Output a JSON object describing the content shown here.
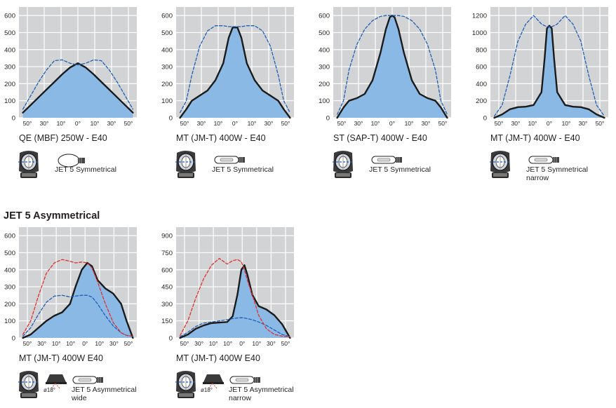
{
  "section_title": "JET 5 Asymmetrical",
  "colors": {
    "fill": "#8bb9e6",
    "grid_bg": "#d2d3d5",
    "solid": "#1b1b1b",
    "blue_dash": "#1f5fb4",
    "red_dash": "#e03030"
  },
  "chart_data": [
    {
      "type": "line",
      "caption": "QE (MBF) 250W - E40",
      "lamp_icon": "bulb-lamp-icon",
      "distribution": [
        "JET 5 Symmetrical"
      ],
      "xticks": [
        "50°",
        "30°",
        "10°",
        "0°",
        "10°",
        "30°",
        "50°"
      ],
      "ylim": [
        0,
        650
      ],
      "yticks": [
        0,
        100,
        200,
        300,
        400,
        500,
        600
      ],
      "x": [
        -70,
        -60,
        -50,
        -40,
        -30,
        -20,
        -10,
        0,
        10,
        20,
        30,
        40,
        50,
        60,
        70
      ],
      "series": [
        {
          "name": "solid",
          "style": "solid",
          "fill": true,
          "values": [
            30,
            75,
            120,
            165,
            210,
            255,
            295,
            320,
            295,
            255,
            210,
            165,
            120,
            75,
            30
          ]
        },
        {
          "name": "dashed",
          "style": "dash-blue",
          "fill": false,
          "values": [
            50,
            130,
            210,
            280,
            335,
            340,
            320,
            310,
            320,
            340,
            335,
            280,
            210,
            130,
            50
          ]
        }
      ]
    },
    {
      "type": "line",
      "caption": "MT (JM-T) 400W - E40",
      "lamp_icon": "tube-lamp-icon",
      "distribution": [
        "JET 5 Symmetrical"
      ],
      "xticks": [
        "50°",
        "30°",
        "10°",
        "0°",
        "10°",
        "30°",
        "50°"
      ],
      "ylim": [
        0,
        650
      ],
      "yticks": [
        0,
        100,
        200,
        300,
        400,
        500,
        600
      ],
      "x": [
        -70,
        -62,
        -55,
        -45,
        -35,
        -25,
        -15,
        -8,
        -3,
        0,
        3,
        8,
        15,
        25,
        35,
        45,
        55,
        62,
        70
      ],
      "series": [
        {
          "name": "solid",
          "style": "solid",
          "fill": true,
          "values": [
            0,
            50,
            100,
            130,
            160,
            220,
            320,
            470,
            530,
            530,
            530,
            470,
            320,
            220,
            160,
            130,
            100,
            50,
            0
          ]
        },
        {
          "name": "dashed",
          "style": "dash-blue",
          "fill": false,
          "values": [
            30,
            100,
            250,
            420,
            510,
            540,
            540,
            535,
            535,
            535,
            535,
            535,
            540,
            540,
            510,
            420,
            250,
            100,
            30
          ]
        }
      ]
    },
    {
      "type": "line",
      "caption": "ST (SAP-T) 400W - E40",
      "lamp_icon": "tube-lamp-icon",
      "distribution": [
        "JET 5 Symmetrical"
      ],
      "xticks": [
        "50°",
        "30°",
        "10°",
        "0°",
        "10°",
        "30°",
        "50°"
      ],
      "ylim": [
        0,
        650
      ],
      "yticks": [
        0,
        100,
        200,
        300,
        400,
        500,
        600
      ],
      "x": [
        -70,
        -62,
        -55,
        -45,
        -35,
        -25,
        -15,
        -8,
        -3,
        0,
        3,
        8,
        15,
        25,
        35,
        45,
        55,
        62,
        70
      ],
      "series": [
        {
          "name": "solid",
          "style": "solid",
          "fill": true,
          "values": [
            0,
            60,
            100,
            115,
            140,
            220,
            380,
            520,
            590,
            600,
            590,
            520,
            380,
            220,
            140,
            115,
            100,
            60,
            0
          ]
        },
        {
          "name": "dashed",
          "style": "dash-blue",
          "fill": false,
          "values": [
            20,
            100,
            280,
            430,
            520,
            570,
            595,
            600,
            600,
            600,
            600,
            600,
            595,
            570,
            520,
            430,
            280,
            100,
            20
          ]
        }
      ]
    },
    {
      "type": "line",
      "caption": "MT (JM-T) 400W - E40",
      "lamp_icon": "tube-lamp-icon",
      "distribution": [
        "JET 5 Symmetrical",
        "narrow"
      ],
      "xticks": [
        "50°",
        "30°",
        "10°",
        "0°",
        "10°",
        "30°",
        "50°"
      ],
      "ylim": [
        0,
        1300
      ],
      "yticks": [
        0,
        200,
        400,
        600,
        800,
        1000,
        1200
      ],
      "x": [
        -70,
        -60,
        -50,
        -40,
        -30,
        -20,
        -10,
        -6,
        -3,
        0,
        3,
        6,
        10,
        20,
        30,
        40,
        50,
        60,
        70
      ],
      "series": [
        {
          "name": "solid",
          "style": "solid",
          "fill": true,
          "values": [
            0,
            40,
            100,
            125,
            130,
            150,
            300,
            700,
            1050,
            1080,
            1050,
            700,
            300,
            150,
            130,
            125,
            100,
            40,
            0
          ]
        },
        {
          "name": "dashed",
          "style": "dash-blue",
          "fill": false,
          "values": [
            20,
            150,
            500,
            900,
            1100,
            1200,
            1100,
            1080,
            1070,
            1070,
            1070,
            1080,
            1100,
            1200,
            1100,
            900,
            500,
            150,
            20
          ]
        }
      ]
    },
    {
      "type": "line",
      "caption": "MT (JM-T) 400W E40",
      "lamp_icon": "tube-lamp-icon",
      "distribution": [
        "JET 5 Asymmetrical",
        "wide"
      ],
      "angle_note": "ø18°",
      "xticks": [
        "50°",
        "30°",
        "10°",
        "10°",
        "0°",
        "10°",
        "30°",
        "50°"
      ],
      "ylim": [
        0,
        650
      ],
      "yticks": [
        0,
        100,
        200,
        300,
        400,
        500,
        600
      ],
      "x": [
        -70,
        -60,
        -50,
        -40,
        -30,
        -20,
        -10,
        -3,
        5,
        12,
        18,
        25,
        35,
        45,
        55,
        62,
        70
      ],
      "series": [
        {
          "name": "solid",
          "style": "solid",
          "fill": true,
          "values": [
            0,
            20,
            60,
            100,
            130,
            150,
            200,
            300,
            400,
            440,
            420,
            340,
            290,
            260,
            200,
            100,
            0
          ]
        },
        {
          "name": "dashed-blue",
          "style": "dash-blue",
          "fill": false,
          "values": [
            10,
            60,
            140,
            210,
            245,
            250,
            240,
            245,
            250,
            250,
            240,
            200,
            130,
            70,
            30,
            15,
            10
          ]
        },
        {
          "name": "dashed-red",
          "style": "dash-red",
          "fill": false,
          "values": [
            20,
            100,
            250,
            380,
            440,
            460,
            450,
            440,
            445,
            440,
            410,
            330,
            200,
            90,
            30,
            15,
            10
          ]
        }
      ]
    },
    {
      "type": "line",
      "caption": "MT (JM-T) 400W E40",
      "lamp_icon": "tube-lamp-icon",
      "distribution": [
        "JET 5 Asymmetrical",
        "narrow"
      ],
      "angle_note": "ø18°",
      "xticks": [
        "50°",
        "30°",
        "10°",
        "10°",
        "0°",
        "10°",
        "30°",
        "50°"
      ],
      "ylim": [
        0,
        975
      ],
      "yticks": [
        0,
        150,
        300,
        450,
        600,
        750,
        900
      ],
      "x": [
        -70,
        -60,
        -50,
        -40,
        -30,
        -20,
        -10,
        -3,
        3,
        8,
        12,
        16,
        22,
        30,
        40,
        50,
        60,
        70
      ],
      "series": [
        {
          "name": "solid",
          "style": "solid",
          "fill": true,
          "values": [
            0,
            30,
            80,
            110,
            130,
            135,
            140,
            190,
            380,
            600,
            640,
            550,
            380,
            280,
            250,
            200,
            120,
            0
          ]
        },
        {
          "name": "dashed-blue",
          "style": "dash-blue",
          "fill": false,
          "values": [
            10,
            50,
            100,
            130,
            140,
            150,
            160,
            170,
            175,
            178,
            175,
            170,
            160,
            140,
            110,
            70,
            30,
            10
          ]
        },
        {
          "name": "dashed-red",
          "style": "dash-red",
          "fill": false,
          "values": [
            20,
            150,
            350,
            520,
            640,
            700,
            650,
            680,
            690,
            670,
            600,
            500,
            380,
            200,
            80,
            30,
            15,
            10
          ]
        }
      ]
    }
  ]
}
